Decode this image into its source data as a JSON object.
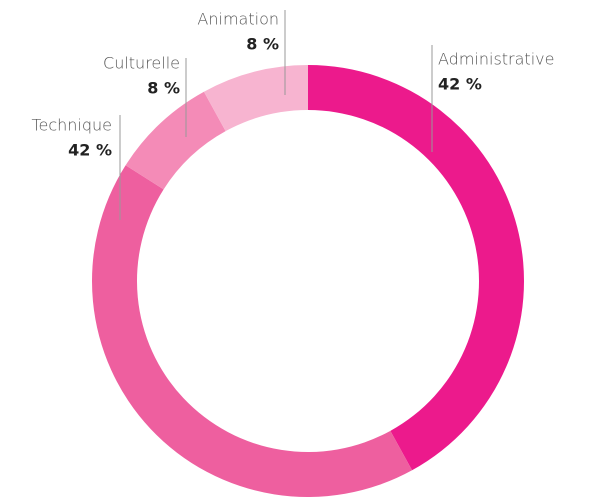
{
  "chart_data": {
    "type": "donut",
    "categories": [
      "Administrative",
      "Technique",
      "Culturelle",
      "Animation"
    ],
    "values": [
      42,
      42,
      8,
      8
    ],
    "value_labels": [
      "42 %",
      "42 %",
      "8 %",
      "8 %"
    ],
    "colors": [
      "#ec1a8c",
      "#ee5f9f",
      "#f48bb7",
      "#f7b4d0"
    ]
  }
}
